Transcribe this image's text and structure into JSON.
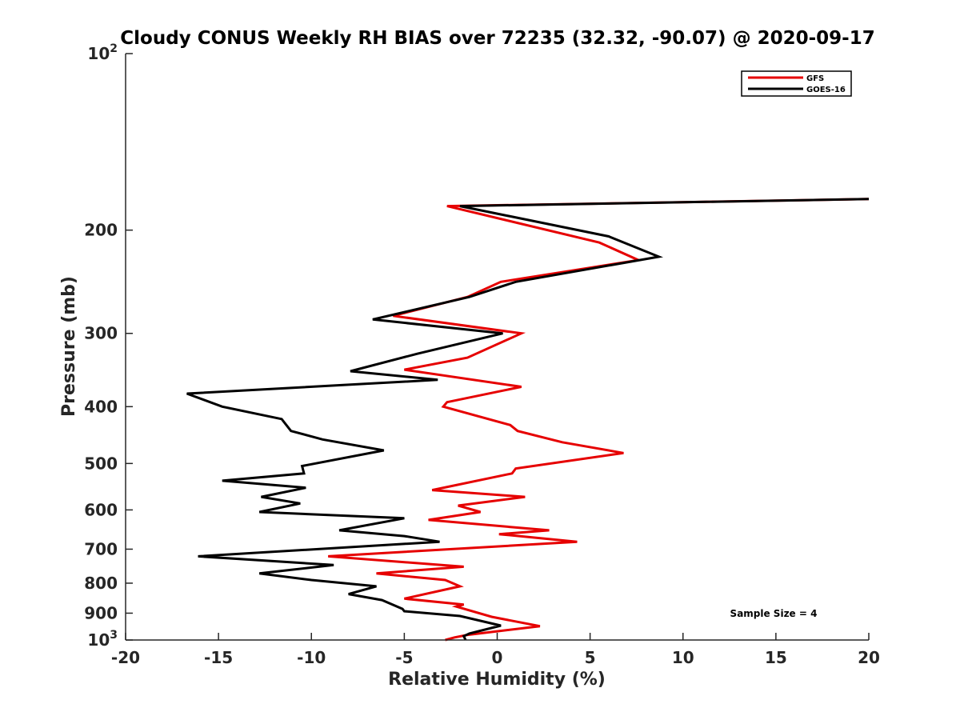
{
  "chart_data": {
    "type": "line",
    "title": "Cloudy CONUS Weekly RH BIAS over 72235 (32.32, -90.07) @ 2020-09-17",
    "xlabel": "Relative Humidity (%)",
    "ylabel": "Pressure (mb)",
    "xlim": [
      -20,
      20
    ],
    "ylim": [
      100,
      1000
    ],
    "yscale": "log",
    "y_reversed": true,
    "x_ticks": [
      "-20",
      "-15",
      "-10",
      "-5",
      "0",
      "5",
      "10",
      "15",
      "20"
    ],
    "y_ticks": [
      {
        "value": 100,
        "base": "10",
        "exp": "2"
      },
      {
        "value": 200,
        "label": "200"
      },
      {
        "value": 300,
        "label": "300"
      },
      {
        "value": 400,
        "label": "400"
      },
      {
        "value": 500,
        "label": "500"
      },
      {
        "value": 600,
        "label": "600"
      },
      {
        "value": 700,
        "label": "700"
      },
      {
        "value": 800,
        "label": "800"
      },
      {
        "value": 900,
        "label": "900"
      },
      {
        "value": 1000,
        "base": "10",
        "exp": "3"
      }
    ],
    "legend_position": "top-right",
    "annotation": "Sample Size = 4",
    "series": [
      {
        "name": "GFS",
        "color": "#e60000",
        "x": [
          -2.8,
          -2.3,
          -1.6,
          2.3,
          -0.3,
          -2.2,
          -1.8,
          -5.0,
          -2.0,
          -2.8,
          -6.5,
          -1.8,
          -9.1,
          4.3,
          0.1,
          2.8,
          -3.7,
          -0.9,
          -2.1,
          1.5,
          -3.5,
          0.8,
          1.0,
          6.8,
          3.5,
          1.1,
          0.7,
          -2.9,
          -2.7,
          1.3,
          -5.0,
          -1.6,
          1.3,
          -5.6,
          -1.6,
          0.2,
          7.6,
          5.5,
          -2.7,
          20.0
        ],
        "y": [
          1000,
          990,
          980,
          947,
          913,
          877,
          870,
          850,
          810,
          790,
          770,
          750,
          720,
          680,
          660,
          650,
          624,
          605,
          590,
          570,
          555,
          520,
          510,
          480,
          460,
          440,
          430,
          400,
          393,
          370,
          346,
          330,
          300,
          280,
          260,
          245,
          225,
          210,
          182,
          177
        ]
      },
      {
        "name": "GOES-16",
        "color": "#000000",
        "x": [
          -1.7,
          -1.8,
          -1.5,
          0.2,
          -2.0,
          -5.0,
          -5.1,
          -6.2,
          -8.0,
          -6.5,
          -10.0,
          -12.8,
          -8.8,
          -16.1,
          -3.1,
          -5.0,
          -8.5,
          -5.0,
          -12.8,
          -10.6,
          -12.7,
          -10.3,
          -14.8,
          -10.4,
          -10.5,
          -6.1,
          -9.4,
          -11.1,
          -11.6,
          -14.8,
          -16.7,
          -3.2,
          -7.9,
          -4.3,
          0.3,
          -6.7,
          -1.5,
          1.0,
          8.7,
          6.0,
          -2.0,
          20.0
        ],
        "y": [
          1000,
          985,
          975,
          945,
          910,
          893,
          885,
          855,
          835,
          810,
          790,
          770,
          745,
          720,
          680,
          665,
          650,
          620,
          605,
          585,
          570,
          550,
          535,
          520,
          505,
          475,
          455,
          440,
          420,
          400,
          380,
          360,
          348,
          325,
          300,
          284,
          260,
          245,
          222,
          205,
          182,
          177
        ]
      }
    ]
  }
}
